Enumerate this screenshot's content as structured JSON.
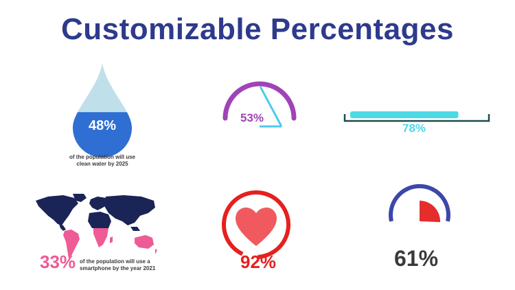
{
  "title": "Customizable Percentages",
  "colors": {
    "title": "#2e3a8c",
    "drop_light": "#bfe0ea",
    "drop_dark": "#2f6fd3",
    "gauge_purple": "#a043b6",
    "gauge_needle": "#4fc9ee",
    "bar_fill": "#4dd9e6",
    "bar_track": "#1f4a4f",
    "map_dark": "#1a2456",
    "map_pink": "#ee5b95",
    "heart_red": "#f05a5f",
    "ring_red": "#e62020",
    "pie_blue": "#3c47a8",
    "pie_red": "#e62d2d",
    "pct_gray": "#3a3a3a"
  },
  "widgets": {
    "water_drop": {
      "percent": 48,
      "label": "48%",
      "caption_line1": "of the population will use",
      "caption_line2": "clean water by 2025",
      "icon": "water-drop-icon"
    },
    "semi_gauge": {
      "percent": 53,
      "label": "53%"
    },
    "progress_bar": {
      "percent": 78,
      "label": "78%"
    },
    "world_map": {
      "percent": 33,
      "label": "33%",
      "caption_line1": "of the population will use a",
      "caption_line2": "smartphone by the year 2021",
      "icon": "world-map-icon"
    },
    "heart_ring": {
      "percent": 92,
      "label": "92%",
      "icon": "heart-icon"
    },
    "pie_ring": {
      "percent": 61,
      "label": "61%"
    }
  }
}
